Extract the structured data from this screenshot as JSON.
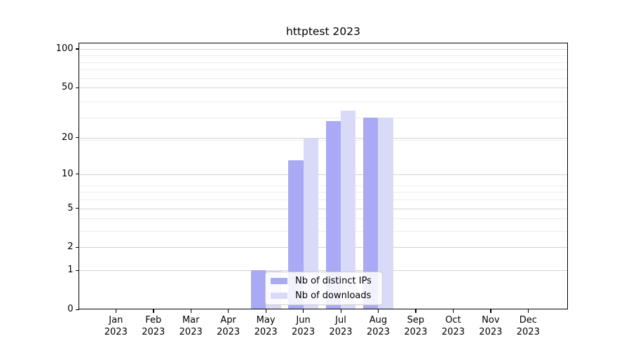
{
  "title": "httptest 2023",
  "chart_data": {
    "type": "bar",
    "title": "httptest 2023",
    "xlabel": "",
    "ylabel": "",
    "categories": [
      "Jan 2023",
      "Feb 2023",
      "Mar 2023",
      "Apr 2023",
      "May 2023",
      "Jun 2023",
      "Jul 2023",
      "Aug 2023",
      "Sep 2023",
      "Oct 2023",
      "Nov 2023",
      "Dec 2023"
    ],
    "series": [
      {
        "name": "Nb of distinct IPs",
        "color": "#a9a9f5",
        "values": [
          0,
          0,
          0,
          0,
          1,
          13,
          27,
          29,
          0,
          0,
          0,
          0
        ]
      },
      {
        "name": "Nb of downloads",
        "color": "#d9d9f8",
        "values": [
          0,
          0,
          0,
          0,
          1,
          20,
          33,
          29,
          0,
          0,
          0,
          0
        ]
      }
    ],
    "yticks": [
      0,
      1,
      2,
      5,
      10,
      20,
      50,
      100
    ],
    "ylim": [
      0,
      112
    ],
    "yscale": "log10(value+1)",
    "grid": true,
    "legend_position": "lower center-left inside plot"
  },
  "colors": {
    "background": "#ffffff",
    "axis": "#000000",
    "grid_major": "#d2d2d2",
    "grid_minor": "#ececec",
    "legend_border": "#cccccc",
    "bar_distinct_ips": "#a9a9f5",
    "bar_downloads": "#d9d9f8"
  }
}
